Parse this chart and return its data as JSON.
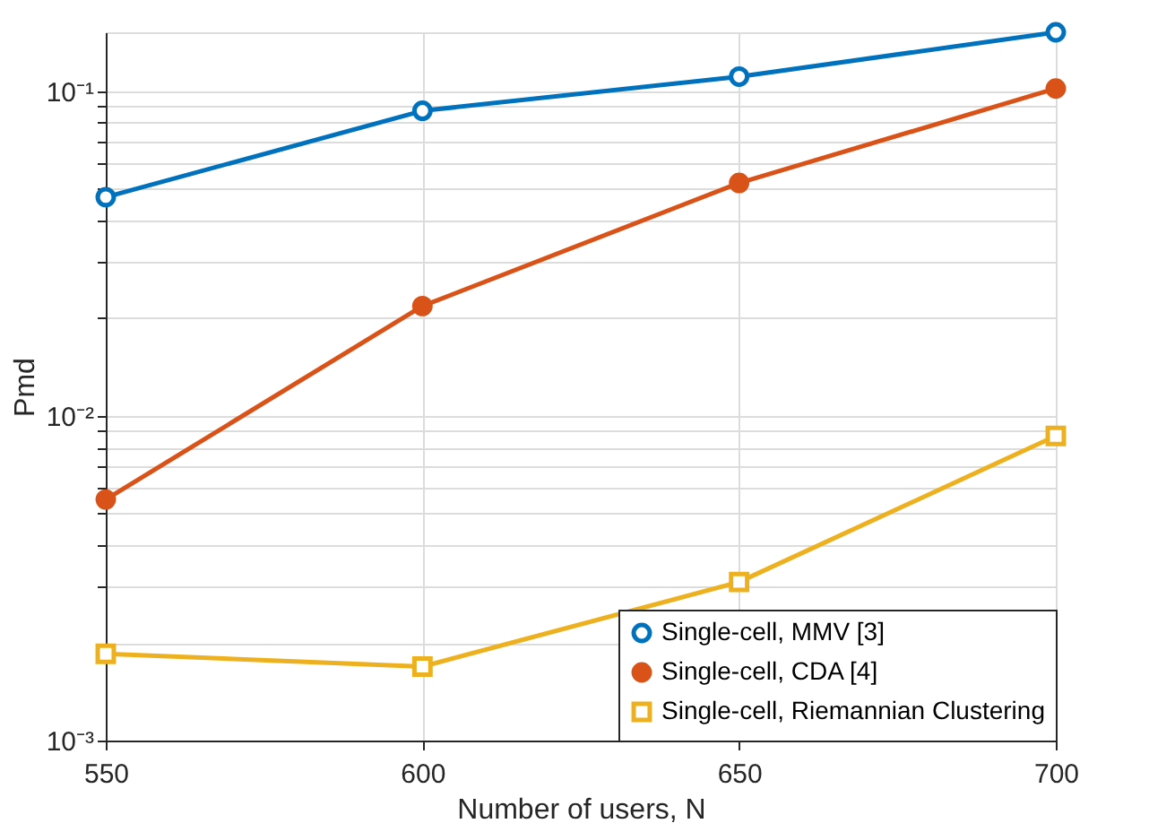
{
  "chart_data": {
    "type": "line",
    "xlabel": "Number of users, N",
    "ylabel": "Pmd",
    "x": [
      550,
      600,
      650,
      700
    ],
    "series": [
      {
        "name": "Single-cell, MMV [3]",
        "color": "#0072bd",
        "marker": "circle",
        "values": [
          0.0472,
          0.0871,
          0.111,
          0.152
        ]
      },
      {
        "name": "Single-cell, CDA [4]",
        "color": "#d95319",
        "marker": "circle",
        "values": [
          0.00553,
          0.0218,
          0.0522,
          0.102
        ]
      },
      {
        "name": "Single-cell, Riemannian Clustering",
        "color": "#edb120",
        "marker": "square",
        "values": [
          0.00185,
          0.00169,
          0.00308,
          0.00868
        ]
      }
    ],
    "xlim": [
      550,
      700
    ],
    "xticks": [
      550,
      600,
      650,
      700
    ],
    "ylim": [
      0.001,
      0.152
    ],
    "yticks": [
      {
        "value": 0.001,
        "label": "10⁻³"
      },
      {
        "value": 0.002,
        "label": null
      },
      {
        "value": 0.003,
        "label": null
      },
      {
        "value": 0.004,
        "label": null
      },
      {
        "value": 0.005,
        "label": null
      },
      {
        "value": 0.006,
        "label": null
      },
      {
        "value": 0.007,
        "label": null
      },
      {
        "value": 0.008,
        "label": null
      },
      {
        "value": 0.009,
        "label": null
      },
      {
        "value": 0.01,
        "label": "10⁻²"
      },
      {
        "value": 0.02,
        "label": null
      },
      {
        "value": 0.03,
        "label": null
      },
      {
        "value": 0.04,
        "label": null
      },
      {
        "value": 0.05,
        "label": null
      },
      {
        "value": 0.06,
        "label": null
      },
      {
        "value": 0.07,
        "label": null
      },
      {
        "value": 0.08,
        "label": null
      },
      {
        "value": 0.09,
        "label": null
      },
      {
        "value": 0.1,
        "label": "10⁻¹"
      }
    ],
    "log": true,
    "grid": true,
    "legend": "bottom right",
    "line_style": "solid"
  }
}
